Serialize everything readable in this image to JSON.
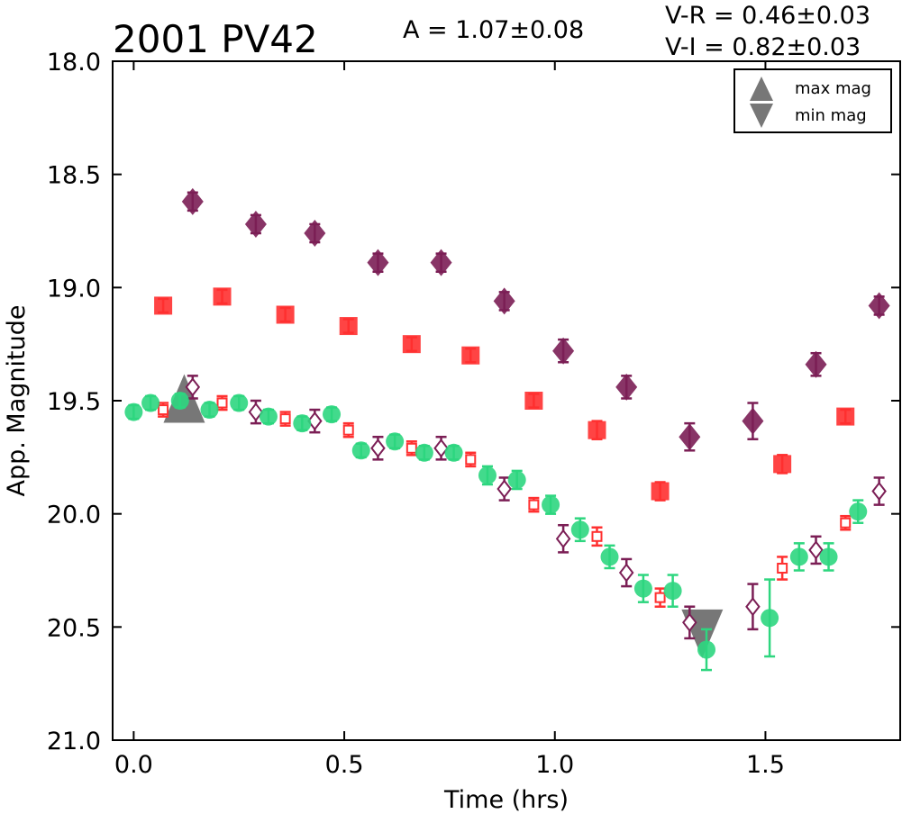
{
  "chart_data": {
    "type": "scatter",
    "title": "2001 PV42",
    "annotations": {
      "amplitude": "A  = 1.07±0.08",
      "color_vr": "V-R = 0.46±0.03",
      "color_vi": "V-I  = 0.82±0.03"
    },
    "xlabel": "Time (hrs)",
    "ylabel": "App. Magnitude",
    "xlim": [
      -0.05,
      1.82
    ],
    "ylim": [
      21.0,
      18.0
    ],
    "y_inverted": true,
    "xticks": [
      "0.0",
      "0.5",
      "1.0",
      "1.5"
    ],
    "xtick_values": [
      0.0,
      0.5,
      1.0,
      1.5
    ],
    "yticks": [
      "18.0",
      "18.5",
      "19.0",
      "19.5",
      "20.0",
      "20.5",
      "21.0"
    ],
    "ytick_values": [
      18.0,
      18.5,
      19.0,
      19.5,
      20.0,
      20.5,
      21.0
    ],
    "grid": false,
    "legend": {
      "placement": "top-right",
      "entries": [
        {
          "label": "max mag",
          "marker": "triangle-up",
          "color": "#777777"
        },
        {
          "label": "min mag",
          "marker": "triangle-down",
          "color": "#777777"
        }
      ]
    },
    "extrema": [
      {
        "kind": "max",
        "x": 0.12,
        "y": 19.49,
        "marker": "triangle-up",
        "color": "#777777"
      },
      {
        "kind": "min",
        "x": 1.35,
        "y": 20.53,
        "marker": "triangle-down",
        "color": "#777777"
      }
    ],
    "series": [
      {
        "marker": "diamond",
        "filled": true,
        "color": "#7b1e55",
        "points": [
          [
            0.14,
            18.62,
            0.04
          ],
          [
            0.29,
            18.72,
            0.04
          ],
          [
            0.43,
            18.76,
            0.04
          ],
          [
            0.58,
            18.89,
            0.04
          ],
          [
            0.73,
            18.89,
            0.04
          ],
          [
            0.88,
            19.06,
            0.04
          ],
          [
            1.02,
            19.28,
            0.05
          ],
          [
            1.17,
            19.44,
            0.05
          ],
          [
            1.32,
            19.66,
            0.06
          ],
          [
            1.47,
            19.59,
            0.08
          ],
          [
            1.62,
            19.34,
            0.05
          ],
          [
            1.77,
            19.08,
            0.04
          ]
        ]
      },
      {
        "marker": "square",
        "filled": true,
        "color": "#ff3030",
        "points": [
          [
            0.07,
            19.08,
            0.03
          ],
          [
            0.21,
            19.04,
            0.03
          ],
          [
            0.36,
            19.12,
            0.03
          ],
          [
            0.51,
            19.17,
            0.03
          ],
          [
            0.66,
            19.25,
            0.03
          ],
          [
            0.8,
            19.3,
            0.03
          ],
          [
            0.95,
            19.5,
            0.03
          ],
          [
            1.1,
            19.63,
            0.04
          ],
          [
            1.25,
            19.9,
            0.04
          ],
          [
            1.54,
            19.78,
            0.04
          ],
          [
            1.69,
            19.57,
            0.03
          ]
        ]
      },
      {
        "marker": "square",
        "filled": false,
        "color": "#ff3030",
        "points": [
          [
            0.07,
            19.54,
            0.03
          ],
          [
            0.21,
            19.51,
            0.03
          ],
          [
            0.36,
            19.58,
            0.03
          ],
          [
            0.51,
            19.63,
            0.03
          ],
          [
            0.66,
            19.71,
            0.03
          ],
          [
            0.8,
            19.76,
            0.03
          ],
          [
            0.95,
            19.96,
            0.03
          ],
          [
            1.1,
            20.1,
            0.04
          ],
          [
            1.25,
            20.37,
            0.04
          ],
          [
            1.54,
            20.24,
            0.05
          ],
          [
            1.69,
            20.04,
            0.03
          ]
        ]
      },
      {
        "marker": "diamond",
        "filled": false,
        "color": "#7b1e55",
        "points": [
          [
            0.14,
            19.44,
            0.05
          ],
          [
            0.29,
            19.55,
            0.05
          ],
          [
            0.43,
            19.59,
            0.05
          ],
          [
            0.58,
            19.71,
            0.05
          ],
          [
            0.73,
            19.71,
            0.05
          ],
          [
            0.88,
            19.89,
            0.05
          ],
          [
            1.02,
            20.11,
            0.06
          ],
          [
            1.17,
            20.26,
            0.06
          ],
          [
            1.32,
            20.48,
            0.07
          ],
          [
            1.47,
            20.41,
            0.1
          ],
          [
            1.62,
            20.16,
            0.06
          ],
          [
            1.77,
            19.9,
            0.06
          ]
        ]
      },
      {
        "marker": "circle",
        "filled": true,
        "color": "#2ed67f",
        "points": [
          [
            0.0,
            19.55,
            0.03
          ],
          [
            0.04,
            19.51,
            0.03
          ],
          [
            0.11,
            19.5,
            0.03
          ],
          [
            0.18,
            19.54,
            0.03
          ],
          [
            0.25,
            19.51,
            0.03
          ],
          [
            0.32,
            19.57,
            0.03
          ],
          [
            0.4,
            19.6,
            0.03
          ],
          [
            0.47,
            19.56,
            0.03
          ],
          [
            0.54,
            19.72,
            0.03
          ],
          [
            0.62,
            19.68,
            0.03
          ],
          [
            0.69,
            19.73,
            0.03
          ],
          [
            0.76,
            19.73,
            0.03
          ],
          [
            0.84,
            19.83,
            0.04
          ],
          [
            0.91,
            19.85,
            0.04
          ],
          [
            0.99,
            19.96,
            0.04
          ],
          [
            1.06,
            20.07,
            0.05
          ],
          [
            1.13,
            20.19,
            0.05
          ],
          [
            1.21,
            20.33,
            0.06
          ],
          [
            1.28,
            20.34,
            0.07
          ],
          [
            1.36,
            20.6,
            0.09
          ],
          [
            1.51,
            20.46,
            0.17
          ],
          [
            1.58,
            20.19,
            0.06
          ],
          [
            1.65,
            20.19,
            0.06
          ],
          [
            1.72,
            19.99,
            0.05
          ]
        ]
      }
    ]
  }
}
